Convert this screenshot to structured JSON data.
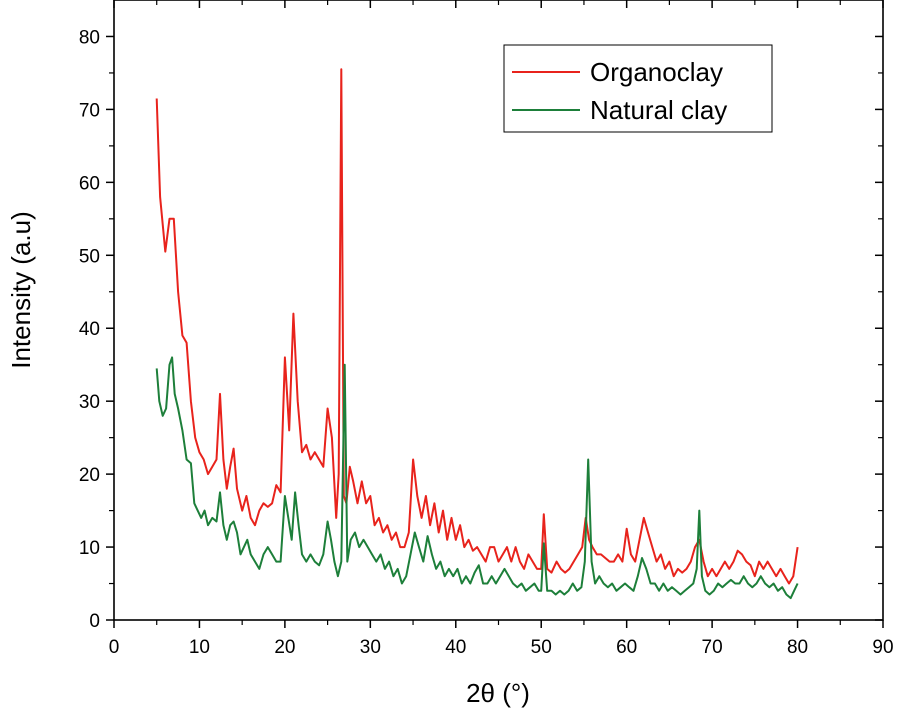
{
  "chart_data": {
    "type": "line",
    "title": "",
    "xlabel": "2θ (°)",
    "ylabel": "Intensity (a.u)",
    "xlim": [
      0,
      90
    ],
    "ylim": [
      0,
      85
    ],
    "x_ticks": [
      0,
      10,
      20,
      30,
      40,
      50,
      60,
      70,
      80,
      90
    ],
    "y_ticks": [
      0,
      10,
      20,
      30,
      40,
      50,
      60,
      70,
      80
    ],
    "grid": false,
    "legend_position": "top-right",
    "series": [
      {
        "name": "Organoclay",
        "color": "#e8231c",
        "points": [
          [
            5.0,
            71.5
          ],
          [
            5.4,
            58
          ],
          [
            6.0,
            50.5
          ],
          [
            6.5,
            55
          ],
          [
            7.0,
            55
          ],
          [
            7.5,
            45
          ],
          [
            8.0,
            39
          ],
          [
            8.5,
            38
          ],
          [
            9.0,
            30
          ],
          [
            9.5,
            25
          ],
          [
            10.0,
            23
          ],
          [
            10.5,
            22
          ],
          [
            11.0,
            20
          ],
          [
            11.5,
            21
          ],
          [
            12.0,
            22
          ],
          [
            12.4,
            31
          ],
          [
            12.8,
            22
          ],
          [
            13.2,
            18
          ],
          [
            13.6,
            21
          ],
          [
            14.0,
            23.5
          ],
          [
            14.4,
            18
          ],
          [
            15.0,
            15
          ],
          [
            15.5,
            17
          ],
          [
            16.0,
            14
          ],
          [
            16.5,
            13
          ],
          [
            17.0,
            15
          ],
          [
            17.5,
            16
          ],
          [
            18.0,
            15.5
          ],
          [
            18.5,
            16
          ],
          [
            19.0,
            18.5
          ],
          [
            19.5,
            17.5
          ],
          [
            20.0,
            36
          ],
          [
            20.5,
            26
          ],
          [
            21.0,
            42
          ],
          [
            21.5,
            30
          ],
          [
            22.0,
            23
          ],
          [
            22.5,
            24
          ],
          [
            23.0,
            22
          ],
          [
            23.5,
            23
          ],
          [
            24.0,
            22
          ],
          [
            24.5,
            21
          ],
          [
            25.0,
            29
          ],
          [
            25.5,
            25
          ],
          [
            26.0,
            14
          ],
          [
            26.3,
            20
          ],
          [
            26.6,
            75.5
          ],
          [
            26.9,
            17
          ],
          [
            27.2,
            16
          ],
          [
            27.6,
            21
          ],
          [
            28.0,
            19
          ],
          [
            28.5,
            16
          ],
          [
            29.0,
            19
          ],
          [
            29.5,
            16
          ],
          [
            30.0,
            17
          ],
          [
            30.5,
            13
          ],
          [
            31.0,
            14
          ],
          [
            31.5,
            12
          ],
          [
            32.0,
            13
          ],
          [
            32.5,
            11
          ],
          [
            33.0,
            12
          ],
          [
            33.5,
            10
          ],
          [
            34.0,
            10
          ],
          [
            34.5,
            12
          ],
          [
            35.0,
            22
          ],
          [
            35.5,
            17
          ],
          [
            36.0,
            14
          ],
          [
            36.5,
            17
          ],
          [
            37.0,
            13
          ],
          [
            37.5,
            16
          ],
          [
            38.0,
            12
          ],
          [
            38.5,
            15
          ],
          [
            39.0,
            11
          ],
          [
            39.5,
            14
          ],
          [
            40.0,
            11
          ],
          [
            40.5,
            13
          ],
          [
            41.0,
            10
          ],
          [
            41.5,
            11
          ],
          [
            42.0,
            9.5
          ],
          [
            42.5,
            10
          ],
          [
            43.0,
            9
          ],
          [
            43.5,
            8
          ],
          [
            44.0,
            10
          ],
          [
            44.5,
            10
          ],
          [
            45.0,
            8
          ],
          [
            45.5,
            9
          ],
          [
            46.0,
            10
          ],
          [
            46.5,
            8
          ],
          [
            47.0,
            10
          ],
          [
            47.5,
            8
          ],
          [
            48.0,
            7
          ],
          [
            48.5,
            9
          ],
          [
            49.0,
            8
          ],
          [
            49.5,
            7
          ],
          [
            50.0,
            7
          ],
          [
            50.3,
            14.5
          ],
          [
            50.7,
            7
          ],
          [
            51.2,
            6.5
          ],
          [
            51.8,
            8
          ],
          [
            52.3,
            7
          ],
          [
            52.8,
            6.5
          ],
          [
            53.3,
            7
          ],
          [
            53.8,
            8
          ],
          [
            54.3,
            9
          ],
          [
            54.8,
            10
          ],
          [
            55.2,
            14
          ],
          [
            55.6,
            11
          ],
          [
            56.0,
            10
          ],
          [
            56.5,
            9
          ],
          [
            57.0,
            9
          ],
          [
            57.5,
            8.5
          ],
          [
            58.0,
            8
          ],
          [
            58.5,
            8
          ],
          [
            59.0,
            9
          ],
          [
            59.5,
            8
          ],
          [
            60.0,
            12.5
          ],
          [
            60.5,
            9
          ],
          [
            61.0,
            8
          ],
          [
            61.5,
            11
          ],
          [
            62.0,
            14
          ],
          [
            62.5,
            12
          ],
          [
            63.0,
            10
          ],
          [
            63.5,
            8
          ],
          [
            64.0,
            9
          ],
          [
            64.5,
            7
          ],
          [
            65.0,
            8
          ],
          [
            65.5,
            6
          ],
          [
            66.0,
            7
          ],
          [
            66.5,
            6.5
          ],
          [
            67.0,
            7
          ],
          [
            67.5,
            8
          ],
          [
            68.0,
            10
          ],
          [
            68.5,
            11
          ],
          [
            69.0,
            8
          ],
          [
            69.5,
            6
          ],
          [
            70.0,
            7
          ],
          [
            70.5,
            6
          ],
          [
            71.0,
            7
          ],
          [
            71.5,
            8
          ],
          [
            72.0,
            7
          ],
          [
            72.5,
            8
          ],
          [
            73.0,
            9.5
          ],
          [
            73.5,
            9
          ],
          [
            74.0,
            8
          ],
          [
            74.5,
            7.5
          ],
          [
            75.0,
            6
          ],
          [
            75.5,
            8
          ],
          [
            76.0,
            7
          ],
          [
            76.5,
            8
          ],
          [
            77.0,
            7
          ],
          [
            77.5,
            6
          ],
          [
            78.0,
            7
          ],
          [
            78.5,
            6
          ],
          [
            79.0,
            5
          ],
          [
            79.5,
            6
          ],
          [
            80.0,
            10
          ]
        ]
      },
      {
        "name": "Natural clay",
        "color": "#1d7f3a",
        "points": [
          [
            5.0,
            34.5
          ],
          [
            5.3,
            30
          ],
          [
            5.7,
            28
          ],
          [
            6.1,
            29
          ],
          [
            6.5,
            35
          ],
          [
            6.8,
            36
          ],
          [
            7.1,
            31
          ],
          [
            7.5,
            29
          ],
          [
            8.0,
            26
          ],
          [
            8.5,
            22
          ],
          [
            9.0,
            21.5
          ],
          [
            9.4,
            16
          ],
          [
            9.8,
            15
          ],
          [
            10.2,
            14
          ],
          [
            10.6,
            15
          ],
          [
            11.0,
            13
          ],
          [
            11.5,
            14
          ],
          [
            12.0,
            13.5
          ],
          [
            12.4,
            17.5
          ],
          [
            12.8,
            13
          ],
          [
            13.2,
            11
          ],
          [
            13.6,
            13
          ],
          [
            14.0,
            13.5
          ],
          [
            14.4,
            12
          ],
          [
            14.8,
            9
          ],
          [
            15.2,
            10
          ],
          [
            15.6,
            11
          ],
          [
            16.0,
            9
          ],
          [
            16.5,
            8
          ],
          [
            17.0,
            7
          ],
          [
            17.5,
            9
          ],
          [
            18.0,
            10
          ],
          [
            18.5,
            9
          ],
          [
            19.0,
            8
          ],
          [
            19.5,
            8
          ],
          [
            20.0,
            17
          ],
          [
            20.4,
            14
          ],
          [
            20.8,
            11
          ],
          [
            21.2,
            17.5
          ],
          [
            21.6,
            13
          ],
          [
            22.0,
            9
          ],
          [
            22.5,
            8
          ],
          [
            23.0,
            9
          ],
          [
            23.5,
            8
          ],
          [
            24.0,
            7.5
          ],
          [
            24.5,
            9
          ],
          [
            25.0,
            13.5
          ],
          [
            25.4,
            11
          ],
          [
            25.8,
            8
          ],
          [
            26.2,
            6
          ],
          [
            26.6,
            8
          ],
          [
            27.0,
            35
          ],
          [
            27.3,
            8
          ],
          [
            27.7,
            11
          ],
          [
            28.2,
            12
          ],
          [
            28.7,
            10
          ],
          [
            29.2,
            11
          ],
          [
            29.7,
            10
          ],
          [
            30.2,
            9
          ],
          [
            30.7,
            8
          ],
          [
            31.2,
            9
          ],
          [
            31.7,
            7
          ],
          [
            32.2,
            8
          ],
          [
            32.7,
            6
          ],
          [
            33.2,
            7
          ],
          [
            33.7,
            5
          ],
          [
            34.2,
            6
          ],
          [
            34.7,
            9
          ],
          [
            35.2,
            12
          ],
          [
            35.7,
            10
          ],
          [
            36.2,
            8
          ],
          [
            36.7,
            11.5
          ],
          [
            37.2,
            9
          ],
          [
            37.7,
            7
          ],
          [
            38.2,
            8
          ],
          [
            38.7,
            6
          ],
          [
            39.2,
            7
          ],
          [
            39.7,
            6
          ],
          [
            40.2,
            7
          ],
          [
            40.7,
            5
          ],
          [
            41.2,
            6
          ],
          [
            41.7,
            5
          ],
          [
            42.2,
            6.5
          ],
          [
            42.7,
            7.5
          ],
          [
            43.2,
            5
          ],
          [
            43.7,
            5
          ],
          [
            44.2,
            6
          ],
          [
            44.7,
            5
          ],
          [
            45.2,
            6
          ],
          [
            45.7,
            7
          ],
          [
            46.2,
            6
          ],
          [
            46.7,
            5
          ],
          [
            47.2,
            4.5
          ],
          [
            47.7,
            5
          ],
          [
            48.2,
            4
          ],
          [
            48.7,
            4.5
          ],
          [
            49.2,
            5
          ],
          [
            49.7,
            4
          ],
          [
            50.0,
            4
          ],
          [
            50.3,
            10.5
          ],
          [
            50.7,
            4
          ],
          [
            51.2,
            4
          ],
          [
            51.7,
            3.5
          ],
          [
            52.2,
            4
          ],
          [
            52.7,
            3.5
          ],
          [
            53.2,
            4
          ],
          [
            53.7,
            5
          ],
          [
            54.2,
            4
          ],
          [
            54.7,
            4.5
          ],
          [
            55.1,
            8
          ],
          [
            55.5,
            22
          ],
          [
            55.9,
            8
          ],
          [
            56.3,
            5
          ],
          [
            56.8,
            6
          ],
          [
            57.3,
            5
          ],
          [
            57.8,
            4.5
          ],
          [
            58.3,
            5
          ],
          [
            58.8,
            4
          ],
          [
            59.3,
            4.5
          ],
          [
            59.8,
            5
          ],
          [
            60.3,
            4.5
          ],
          [
            60.8,
            4
          ],
          [
            61.3,
            6
          ],
          [
            61.8,
            8.5
          ],
          [
            62.3,
            7
          ],
          [
            62.8,
            5
          ],
          [
            63.3,
            5
          ],
          [
            63.8,
            4
          ],
          [
            64.3,
            5
          ],
          [
            64.8,
            4
          ],
          [
            65.3,
            4.5
          ],
          [
            65.8,
            4
          ],
          [
            66.3,
            3.5
          ],
          [
            66.8,
            4
          ],
          [
            67.3,
            4.5
          ],
          [
            67.8,
            5
          ],
          [
            68.2,
            7
          ],
          [
            68.5,
            15
          ],
          [
            68.8,
            6
          ],
          [
            69.2,
            4
          ],
          [
            69.7,
            3.5
          ],
          [
            70.2,
            4
          ],
          [
            70.7,
            5
          ],
          [
            71.2,
            4.5
          ],
          [
            71.7,
            5
          ],
          [
            72.2,
            5.5
          ],
          [
            72.7,
            5
          ],
          [
            73.2,
            5
          ],
          [
            73.7,
            6
          ],
          [
            74.2,
            5
          ],
          [
            74.7,
            4.5
          ],
          [
            75.2,
            5
          ],
          [
            75.7,
            6
          ],
          [
            76.2,
            5
          ],
          [
            76.7,
            4.5
          ],
          [
            77.2,
            5
          ],
          [
            77.7,
            4
          ],
          [
            78.2,
            4.5
          ],
          [
            78.7,
            3.5
          ],
          [
            79.2,
            3
          ],
          [
            79.6,
            4
          ],
          [
            80.0,
            5
          ]
        ]
      }
    ]
  }
}
